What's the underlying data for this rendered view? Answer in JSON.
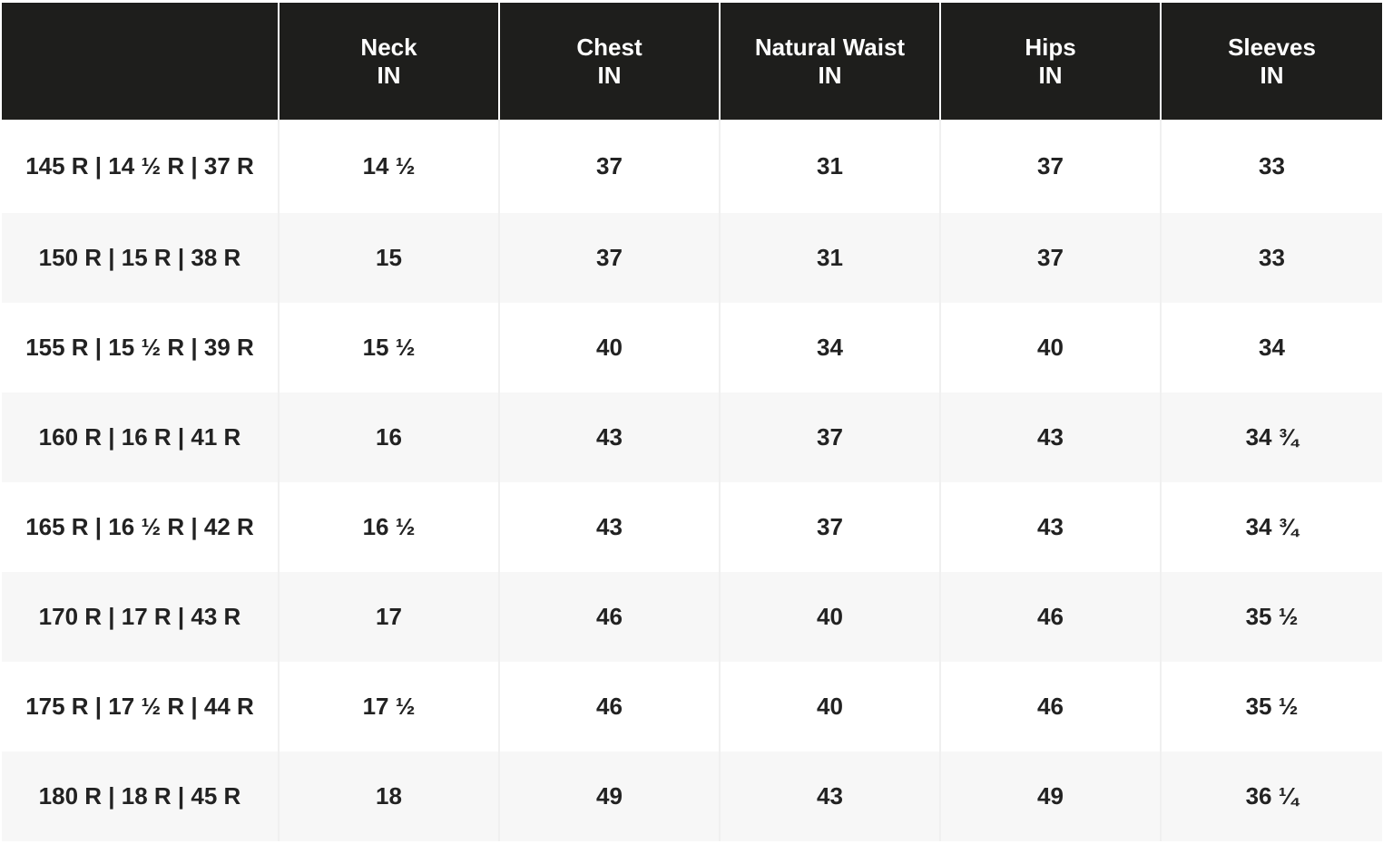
{
  "table": {
    "headers": [
      {
        "name": "",
        "unit": ""
      },
      {
        "name": "Neck",
        "unit": "IN"
      },
      {
        "name": "Chest",
        "unit": "IN"
      },
      {
        "name": "Natural Waist",
        "unit": "IN"
      },
      {
        "name": "Hips",
        "unit": "IN"
      },
      {
        "name": "Sleeves",
        "unit": "IN"
      }
    ],
    "rows": [
      {
        "size": "145 R | 14 ½ R | 37 R",
        "neck": "14 ½",
        "chest": "37",
        "waist": "31",
        "hips": "37",
        "sleeves": "33"
      },
      {
        "size": "150 R | 15 R | 38 R",
        "neck": "15",
        "chest": "37",
        "waist": "31",
        "hips": "37",
        "sleeves": "33"
      },
      {
        "size": "155 R | 15 ½ R | 39 R",
        "neck": "15 ½",
        "chest": "40",
        "waist": "34",
        "hips": "40",
        "sleeves": "34"
      },
      {
        "size": "160 R | 16 R | 41 R",
        "neck": "16",
        "chest": "43",
        "waist": "37",
        "hips": "43",
        "sleeves": "34 ¾"
      },
      {
        "size": "165 R | 16 ½ R | 42 R",
        "neck": "16 ½",
        "chest": "43",
        "waist": "37",
        "hips": "43",
        "sleeves": "34 ¾"
      },
      {
        "size": "170 R | 17 R | 43 R",
        "neck": "17",
        "chest": "46",
        "waist": "40",
        "hips": "46",
        "sleeves": "35 ½"
      },
      {
        "size": "175 R | 17 ½ R | 44 R",
        "neck": "17 ½",
        "chest": "46",
        "waist": "40",
        "hips": "46",
        "sleeves": "35 ½"
      },
      {
        "size": "180 R | 18 R | 45 R",
        "neck": "18",
        "chest": "49",
        "waist": "43",
        "hips": "49",
        "sleeves": "36 ¼"
      }
    ]
  },
  "colors": {
    "header_bg": "#1e1e1c",
    "header_text": "#ffffff",
    "row_alt_bg": "#f7f7f7",
    "cell_text": "#222222"
  }
}
